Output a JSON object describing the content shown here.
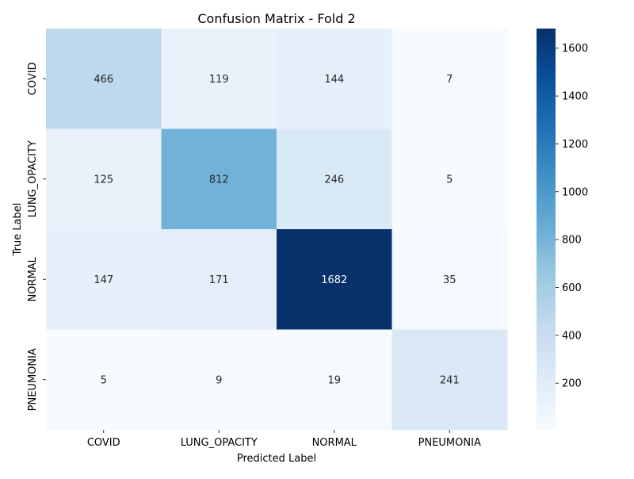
{
  "chart_data": {
    "type": "heatmap",
    "title": "Confusion Matrix - Fold 2",
    "xlabel": "Predicted Label",
    "ylabel": "True Label",
    "x_categories": [
      "COVID",
      "LUNG_OPACITY",
      "NORMAL",
      "PNEUMONIA"
    ],
    "y_categories": [
      "COVID",
      "LUNG_OPACITY",
      "NORMAL",
      "PNEUMONIA"
    ],
    "values": [
      [
        466,
        119,
        144,
        7
      ],
      [
        125,
        812,
        246,
        5
      ],
      [
        147,
        171,
        1682,
        35
      ],
      [
        5,
        9,
        19,
        241
      ]
    ],
    "colormap": "Blues",
    "colorbar": {
      "min": 5,
      "max": 1682,
      "ticks": [
        200,
        400,
        600,
        800,
        1000,
        1200,
        1400,
        1600
      ]
    },
    "grid": false
  }
}
